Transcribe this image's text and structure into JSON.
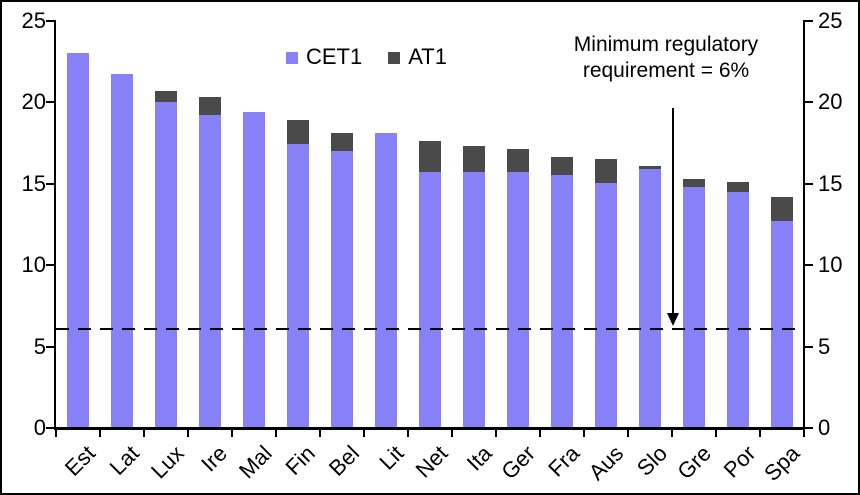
{
  "chart_data": {
    "type": "bar",
    "stacked": true,
    "title": "",
    "xlabel": "",
    "ylabel": "",
    "categories": [
      "Est",
      "Lat",
      "Lux",
      "Ire",
      "Mal",
      "Fin",
      "Bel",
      "Lit",
      "Net",
      "Ita",
      "Ger",
      "Fra",
      "Aus",
      "Slo",
      "Gre",
      "Por",
      "Spa"
    ],
    "series": [
      {
        "name": "CET1",
        "color": "#8781f8",
        "values": [
          23.0,
          21.7,
          20.0,
          19.2,
          19.4,
          17.4,
          17.0,
          18.1,
          15.7,
          15.7,
          15.7,
          15.5,
          15.0,
          15.9,
          14.8,
          14.5,
          12.7
        ]
      },
      {
        "name": "AT1",
        "color": "#4a4a4a",
        "values": [
          0,
          0,
          0.7,
          1.1,
          0,
          1.5,
          1.1,
          0,
          1.9,
          1.6,
          1.4,
          1.1,
          1.5,
          0.2,
          0.5,
          0.6,
          1.5
        ]
      }
    ],
    "ylim": [
      0,
      25
    ],
    "yticks": [
      0,
      5,
      10,
      15,
      20,
      25
    ],
    "dual_y_axis": true,
    "grid": false,
    "legend_position": "top-center",
    "reference_line": {
      "value": 6,
      "style": "dashed",
      "color": "#000000"
    },
    "annotation": {
      "text_line1": "Minimum regulatory",
      "text_line2": "requirement = 6%",
      "arrow_points_to_value": 6
    }
  },
  "legend": {
    "items": [
      {
        "label": "CET1",
        "color": "#8781f8"
      },
      {
        "label": "AT1",
        "color": "#4a4a4a"
      }
    ]
  },
  "annotation": {
    "line1": "Minimum regulatory",
    "line2": "requirement = 6%"
  }
}
